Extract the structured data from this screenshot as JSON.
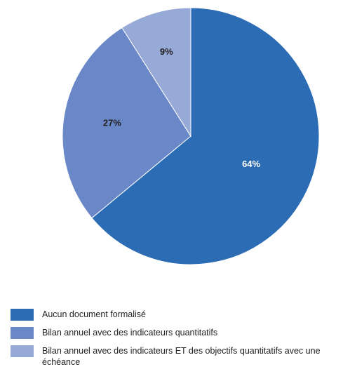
{
  "chart_data": {
    "type": "pie",
    "categories": [
      "Aucun document formalisé",
      "Bilan annuel avec des indicateurs quantitatifs",
      "Bilan annuel avec des indicateurs ET des objectifs quantitatifs avec une échéance"
    ],
    "values": [
      64,
      27,
      9
    ],
    "labels": [
      "64%",
      "27%",
      "9%"
    ],
    "colors": [
      "#2b6cb5",
      "#6a88c7",
      "#97a9d6"
    ],
    "label_colors": [
      "#ffffff",
      "#231f20",
      "#231f20"
    ],
    "legend_position": "bottom",
    "start": "top",
    "direction": "clockwise"
  }
}
